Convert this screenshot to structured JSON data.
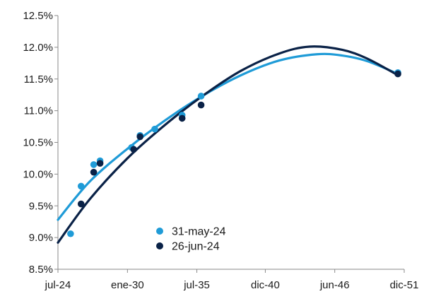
{
  "chart_data": {
    "type": "scatter",
    "title": "",
    "xlabel": "",
    "ylabel": "",
    "grid": false,
    "legend_position": "bottom-center",
    "xlim": [
      "2024-07-01",
      "2051-12-01"
    ],
    "ylim": [
      8.5,
      12.5
    ],
    "y_ticks": [
      8.5,
      9.0,
      9.5,
      10.0,
      10.5,
      11.0,
      11.5,
      12.0,
      12.5
    ],
    "y_tick_labels": [
      "8.5%",
      "9.0%",
      "9.5%",
      "10.0%",
      "10.5%",
      "11.0%",
      "11.5%",
      "12.0%",
      "12.5%"
    ],
    "x_ticks": [
      "2024-07-01",
      "2030-01-01",
      "2035-07-01",
      "2040-12-01",
      "2046-06-01",
      "2051-12-01"
    ],
    "x_tick_labels": [
      "jul-24",
      "ene-30",
      "jul-35",
      "dic-40",
      "jun-46",
      "dic-51"
    ],
    "series": [
      {
        "name": "31-may-24",
        "color": "#1f9bd7",
        "points": [
          {
            "x": "2025-07-01",
            "y": 9.06
          },
          {
            "x": "2026-05-01",
            "y": 9.81
          },
          {
            "x": "2027-05-01",
            "y": 10.15
          },
          {
            "x": "2027-11-01",
            "y": 10.21
          },
          {
            "x": "2030-05-01",
            "y": 10.42
          },
          {
            "x": "2031-01-01",
            "y": 10.61
          },
          {
            "x": "2032-03-01",
            "y": 10.71
          },
          {
            "x": "2034-05-01",
            "y": 10.93
          },
          {
            "x": "2035-11-01",
            "y": 11.23
          },
          {
            "x": "2051-06-01",
            "y": 11.6
          }
        ],
        "fit_curve": [
          {
            "x": "2024-07-01",
            "y": 9.28
          },
          {
            "x": "2027-01-01",
            "y": 9.88
          },
          {
            "x": "2030-01-01",
            "y": 10.4
          },
          {
            "x": "2033-01-01",
            "y": 10.85
          },
          {
            "x": "2036-01-01",
            "y": 11.24
          },
          {
            "x": "2039-01-01",
            "y": 11.56
          },
          {
            "x": "2042-01-01",
            "y": 11.79
          },
          {
            "x": "2045-01-01",
            "y": 11.89
          },
          {
            "x": "2047-01-01",
            "y": 11.87
          },
          {
            "x": "2049-01-01",
            "y": 11.78
          },
          {
            "x": "2051-06-01",
            "y": 11.58
          }
        ]
      },
      {
        "name": "26-jun-24",
        "color": "#0a2247",
        "points": [
          {
            "x": "2026-05-01",
            "y": 9.53
          },
          {
            "x": "2027-05-01",
            "y": 10.03
          },
          {
            "x": "2027-11-01",
            "y": 10.17
          },
          {
            "x": "2030-07-01",
            "y": 10.39
          },
          {
            "x": "2031-01-01",
            "y": 10.59
          },
          {
            "x": "2034-05-01",
            "y": 10.88
          },
          {
            "x": "2035-11-01",
            "y": 11.09
          },
          {
            "x": "2051-06-01",
            "y": 11.58
          }
        ],
        "fit_curve": [
          {
            "x": "2024-07-01",
            "y": 8.92
          },
          {
            "x": "2027-01-01",
            "y": 9.6
          },
          {
            "x": "2030-01-01",
            "y": 10.25
          },
          {
            "x": "2033-01-01",
            "y": 10.78
          },
          {
            "x": "2036-01-01",
            "y": 11.24
          },
          {
            "x": "2039-01-01",
            "y": 11.63
          },
          {
            "x": "2042-01-01",
            "y": 11.9
          },
          {
            "x": "2044-06-01",
            "y": 12.01
          },
          {
            "x": "2047-01-01",
            "y": 11.96
          },
          {
            "x": "2049-01-01",
            "y": 11.82
          },
          {
            "x": "2051-06-01",
            "y": 11.56
          }
        ]
      }
    ]
  }
}
